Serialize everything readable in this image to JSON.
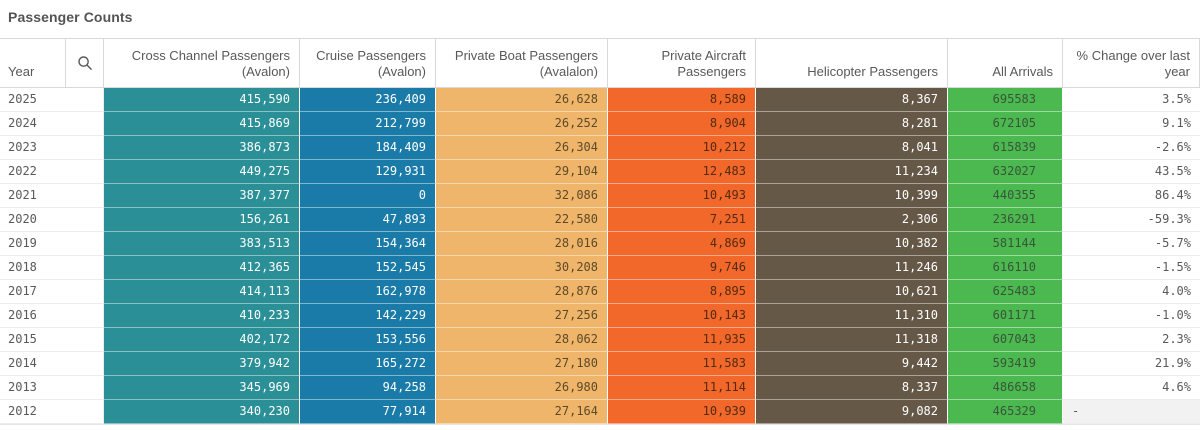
{
  "title": "Passenger Counts",
  "table": {
    "year_header": "Year",
    "search_icon": "magnifier-search-icon",
    "columns": [
      {
        "id": "cross_channel",
        "label": "Cross Channel Passengers (Avalon)",
        "bg": "#2a8f96",
        "text": "#ffffff"
      },
      {
        "id": "cruise",
        "label": "Cruise Passengers (Avalon)",
        "bg": "#1a7aa8",
        "text": "#ffffff"
      },
      {
        "id": "private_boat",
        "label": "Private Boat Passengers (Avalalon)",
        "bg": "#efb56a",
        "text": "#5e4a29"
      },
      {
        "id": "private_aircraft",
        "label": "Private Aircraft Passengers",
        "bg": "#f1682a",
        "text": "#542a10"
      },
      {
        "id": "helicopter",
        "label": "Helicopter Passengers",
        "bg": "#655847",
        "text": "#ffffff"
      },
      {
        "id": "all_arrivals",
        "label": "All Arrivals",
        "bg": "#4cb950",
        "text": "#38553a"
      },
      {
        "id": "pct_change",
        "label": "% Change over last year",
        "bg": "#ffffff",
        "text": "#595959"
      }
    ],
    "rows": [
      {
        "year": "2025",
        "values": [
          "415,590",
          "236,409",
          "26,628",
          "8,589",
          "8,367",
          "695583",
          "3.5%"
        ]
      },
      {
        "year": "2024",
        "values": [
          "415,869",
          "212,799",
          "26,252",
          "8,904",
          "8,281",
          "672105",
          "9.1%"
        ]
      },
      {
        "year": "2023",
        "values": [
          "386,873",
          "184,409",
          "26,304",
          "10,212",
          "8,041",
          "615839",
          "-2.6%"
        ]
      },
      {
        "year": "2022",
        "values": [
          "449,275",
          "129,931",
          "29,104",
          "12,483",
          "11,234",
          "632027",
          "43.5%"
        ]
      },
      {
        "year": "2021",
        "values": [
          "387,377",
          "0",
          "32,086",
          "10,493",
          "10,399",
          "440355",
          "86.4%"
        ]
      },
      {
        "year": "2020",
        "values": [
          "156,261",
          "47,893",
          "22,580",
          "7,251",
          "2,306",
          "236291",
          "-59.3%"
        ]
      },
      {
        "year": "2019",
        "values": [
          "383,513",
          "154,364",
          "28,016",
          "4,869",
          "10,382",
          "581144",
          "-5.7%"
        ]
      },
      {
        "year": "2018",
        "values": [
          "412,365",
          "152,545",
          "30,208",
          "9,746",
          "11,246",
          "616110",
          "-1.5%"
        ]
      },
      {
        "year": "2017",
        "values": [
          "414,113",
          "162,978",
          "28,876",
          "8,895",
          "10,621",
          "625483",
          "4.0%"
        ]
      },
      {
        "year": "2016",
        "values": [
          "410,233",
          "142,229",
          "27,256",
          "10,143",
          "11,310",
          "601171",
          "-1.0%"
        ]
      },
      {
        "year": "2015",
        "values": [
          "402,172",
          "153,556",
          "28,062",
          "11,935",
          "11,318",
          "607043",
          "2.3%"
        ]
      },
      {
        "year": "2014",
        "values": [
          "379,942",
          "165,272",
          "27,180",
          "11,583",
          "9,442",
          "593419",
          "21.9%"
        ]
      },
      {
        "year": "2013",
        "values": [
          "345,969",
          "94,258",
          "26,980",
          "11,114",
          "8,337",
          "486658",
          "4.6%"
        ]
      },
      {
        "year": "2012",
        "values": [
          "340,230",
          "77,914",
          "27,164",
          "10,939",
          "9,082",
          "465329",
          "-"
        ]
      }
    ]
  },
  "chart_data": {
    "type": "table",
    "title": "Passenger Counts",
    "categories": [
      "2025",
      "2024",
      "2023",
      "2022",
      "2021",
      "2020",
      "2019",
      "2018",
      "2017",
      "2016",
      "2015",
      "2014",
      "2013",
      "2012"
    ],
    "series": [
      {
        "name": "Cross Channel Passengers (Avalon)",
        "values": [
          415590,
          415869,
          386873,
          449275,
          387377,
          156261,
          383513,
          412365,
          414113,
          410233,
          402172,
          379942,
          345969,
          340230
        ]
      },
      {
        "name": "Cruise Passengers (Avalon)",
        "values": [
          236409,
          212799,
          184409,
          129931,
          0,
          47893,
          154364,
          152545,
          162978,
          142229,
          153556,
          165272,
          94258,
          77914
        ]
      },
      {
        "name": "Private Boat Passengers (Avalalon)",
        "values": [
          26628,
          26252,
          26304,
          29104,
          32086,
          22580,
          28016,
          30208,
          28876,
          27256,
          28062,
          27180,
          26980,
          27164
        ]
      },
      {
        "name": "Private Aircraft Passengers",
        "values": [
          8589,
          8904,
          10212,
          12483,
          10493,
          7251,
          4869,
          9746,
          8895,
          10143,
          11935,
          11583,
          11114,
          10939
        ]
      },
      {
        "name": "Helicopter Passengers",
        "values": [
          8367,
          8281,
          8041,
          11234,
          10399,
          2306,
          10382,
          11246,
          10621,
          11310,
          11318,
          9442,
          8337,
          9082
        ]
      },
      {
        "name": "All Arrivals",
        "values": [
          695583,
          672105,
          615839,
          632027,
          440355,
          236291,
          581144,
          616110,
          625483,
          601171,
          607043,
          593419,
          486658,
          465329
        ]
      },
      {
        "name": "% Change over last year",
        "values": [
          "3.5%",
          "9.1%",
          "-2.6%",
          "43.5%",
          "86.4%",
          "-59.3%",
          "-5.7%",
          "-1.5%",
          "4.0%",
          "-1.0%",
          "2.3%",
          "21.9%",
          "4.6%",
          "-"
        ]
      }
    ],
    "legend_position": "none",
    "grid": "cell-borders"
  }
}
